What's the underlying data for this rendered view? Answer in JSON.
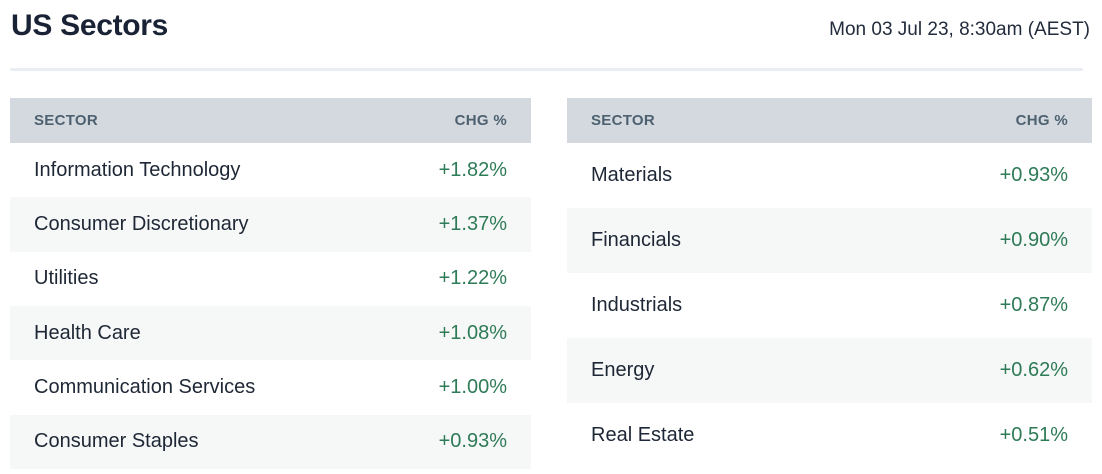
{
  "page": {
    "title": "US Sectors",
    "timestamp": "Mon 03 Jul 23, 8:30am (AEST)"
  },
  "table_header": {
    "sector": "SECTOR",
    "chg": "CHG %"
  },
  "tables": {
    "left": [
      {
        "sector": "Information Technology",
        "chg": "+1.82%"
      },
      {
        "sector": "Consumer Discretionary",
        "chg": "+1.37%"
      },
      {
        "sector": "Utilities",
        "chg": "+1.22%"
      },
      {
        "sector": "Health Care",
        "chg": "+1.08%"
      },
      {
        "sector": "Communication Services",
        "chg": "+1.00%"
      },
      {
        "sector": "Consumer Staples",
        "chg": "+0.93%"
      }
    ],
    "right": [
      {
        "sector": "Materials",
        "chg": "+0.93%"
      },
      {
        "sector": "Financials",
        "chg": "+0.90%"
      },
      {
        "sector": "Industrials",
        "chg": "+0.87%"
      },
      {
        "sector": "Energy",
        "chg": "+0.62%"
      },
      {
        "sector": "Real Estate",
        "chg": "+0.51%"
      }
    ]
  },
  "colors": {
    "title_text": "#1a2336",
    "header_bg": "#d3d9de",
    "header_text": "#4e6170",
    "row_text": "#1e2735",
    "positive_value": "#2e7b57",
    "row_stripe": "#f6f7f7",
    "divider": "#e9eef4"
  },
  "chart_data": {
    "type": "table",
    "title": "US Sectors",
    "timestamp": "Mon 03 Jul 23, 8:30am (AEST)",
    "columns": [
      "SECTOR",
      "CHG %"
    ],
    "rows": [
      [
        "Information Technology",
        "+1.82%"
      ],
      [
        "Consumer Discretionary",
        "+1.37%"
      ],
      [
        "Utilities",
        "+1.22%"
      ],
      [
        "Health Care",
        "+1.08%"
      ],
      [
        "Communication Services",
        "+1.00%"
      ],
      [
        "Consumer Staples",
        "+0.93%"
      ],
      [
        "Materials",
        "+0.93%"
      ],
      [
        "Financials",
        "+0.90%"
      ],
      [
        "Industrials",
        "+0.87%"
      ],
      [
        "Energy",
        "+0.62%"
      ],
      [
        "Real Estate",
        "+0.51%"
      ]
    ],
    "layout": "two side-by-side tables; left table holds rows 1-6, right table holds rows 7-11; all values positive (green)"
  }
}
